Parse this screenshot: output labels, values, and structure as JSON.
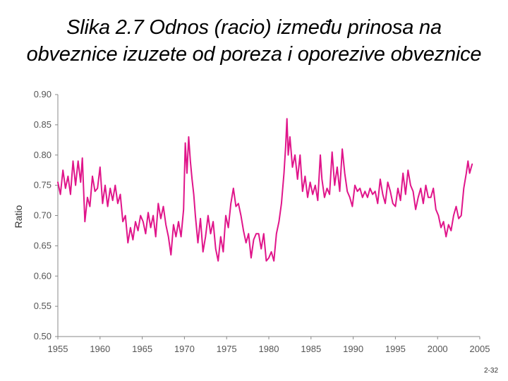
{
  "title": {
    "line1": "Slika 2.7 Odnos (racio) između prinosa na",
    "line2": "obveznice izuzete od poreza i oporezive obveznice"
  },
  "page_number": "2-32",
  "chart_data": {
    "type": "line",
    "ylabel": "Ratio",
    "xlabel": "",
    "xlim": [
      1955,
      2005
    ],
    "ylim": [
      0.5,
      0.9
    ],
    "x_ticks": [
      "1955",
      "1960",
      "1965",
      "1970",
      "1975",
      "1980",
      "1985",
      "1990",
      "1995",
      "2000",
      "2005"
    ],
    "y_ticks": [
      "0.90",
      "0.85",
      "0.80",
      "0.75",
      "0.70",
      "0.65",
      "0.60",
      "0.55",
      "0.50"
    ],
    "grid": false,
    "legend": "none",
    "color": "#e0158a",
    "series": [
      {
        "values": [
          [
            1955.0,
            0.755
          ],
          [
            1955.3,
            0.735
          ],
          [
            1955.6,
            0.775
          ],
          [
            1955.9,
            0.745
          ],
          [
            1956.2,
            0.765
          ],
          [
            1956.5,
            0.735
          ],
          [
            1956.8,
            0.79
          ],
          [
            1957.1,
            0.75
          ],
          [
            1957.4,
            0.79
          ],
          [
            1957.7,
            0.755
          ],
          [
            1957.9,
            0.795
          ],
          [
            1958.2,
            0.69
          ],
          [
            1958.5,
            0.73
          ],
          [
            1958.8,
            0.715
          ],
          [
            1959.1,
            0.765
          ],
          [
            1959.4,
            0.74
          ],
          [
            1959.7,
            0.745
          ],
          [
            1960.0,
            0.78
          ],
          [
            1960.3,
            0.72
          ],
          [
            1960.6,
            0.75
          ],
          [
            1960.9,
            0.715
          ],
          [
            1961.2,
            0.745
          ],
          [
            1961.5,
            0.725
          ],
          [
            1961.8,
            0.75
          ],
          [
            1962.1,
            0.72
          ],
          [
            1962.4,
            0.735
          ],
          [
            1962.7,
            0.69
          ],
          [
            1963.0,
            0.7
          ],
          [
            1963.3,
            0.655
          ],
          [
            1963.6,
            0.68
          ],
          [
            1963.9,
            0.66
          ],
          [
            1964.2,
            0.69
          ],
          [
            1964.5,
            0.675
          ],
          [
            1964.8,
            0.7
          ],
          [
            1965.1,
            0.69
          ],
          [
            1965.4,
            0.67
          ],
          [
            1965.7,
            0.705
          ],
          [
            1966.0,
            0.68
          ],
          [
            1966.3,
            0.7
          ],
          [
            1966.6,
            0.665
          ],
          [
            1966.9,
            0.72
          ],
          [
            1967.2,
            0.695
          ],
          [
            1967.5,
            0.715
          ],
          [
            1967.8,
            0.685
          ],
          [
            1968.1,
            0.665
          ],
          [
            1968.4,
            0.635
          ],
          [
            1968.7,
            0.685
          ],
          [
            1969.0,
            0.665
          ],
          [
            1969.3,
            0.69
          ],
          [
            1969.6,
            0.665
          ],
          [
            1969.9,
            0.71
          ],
          [
            1970.1,
            0.82
          ],
          [
            1970.3,
            0.77
          ],
          [
            1970.5,
            0.83
          ],
          [
            1970.7,
            0.79
          ],
          [
            1970.9,
            0.76
          ],
          [
            1971.1,
            0.735
          ],
          [
            1971.3,
            0.7
          ],
          [
            1971.6,
            0.655
          ],
          [
            1971.9,
            0.695
          ],
          [
            1972.2,
            0.64
          ],
          [
            1972.5,
            0.665
          ],
          [
            1972.8,
            0.7
          ],
          [
            1973.1,
            0.67
          ],
          [
            1973.4,
            0.69
          ],
          [
            1973.7,
            0.645
          ],
          [
            1974.0,
            0.625
          ],
          [
            1974.3,
            0.665
          ],
          [
            1974.6,
            0.64
          ],
          [
            1974.9,
            0.7
          ],
          [
            1975.2,
            0.68
          ],
          [
            1975.5,
            0.72
          ],
          [
            1975.8,
            0.745
          ],
          [
            1976.1,
            0.715
          ],
          [
            1976.4,
            0.72
          ],
          [
            1976.7,
            0.7
          ],
          [
            1977.0,
            0.675
          ],
          [
            1977.3,
            0.655
          ],
          [
            1977.6,
            0.67
          ],
          [
            1977.9,
            0.63
          ],
          [
            1978.2,
            0.66
          ],
          [
            1978.5,
            0.67
          ],
          [
            1978.8,
            0.67
          ],
          [
            1979.1,
            0.645
          ],
          [
            1979.4,
            0.67
          ],
          [
            1979.7,
            0.625
          ],
          [
            1980.0,
            0.63
          ],
          [
            1980.3,
            0.64
          ],
          [
            1980.6,
            0.625
          ],
          [
            1980.9,
            0.67
          ],
          [
            1981.2,
            0.69
          ],
          [
            1981.5,
            0.72
          ],
          [
            1981.8,
            0.77
          ],
          [
            1982.0,
            0.815
          ],
          [
            1982.15,
            0.86
          ],
          [
            1982.3,
            0.8
          ],
          [
            1982.5,
            0.83
          ],
          [
            1982.8,
            0.78
          ],
          [
            1983.1,
            0.8
          ],
          [
            1983.4,
            0.76
          ],
          [
            1983.7,
            0.8
          ],
          [
            1984.0,
            0.74
          ],
          [
            1984.3,
            0.765
          ],
          [
            1984.6,
            0.73
          ],
          [
            1984.9,
            0.755
          ],
          [
            1985.2,
            0.735
          ],
          [
            1985.5,
            0.75
          ],
          [
            1985.8,
            0.725
          ],
          [
            1986.1,
            0.8
          ],
          [
            1986.3,
            0.76
          ],
          [
            1986.6,
            0.73
          ],
          [
            1986.9,
            0.745
          ],
          [
            1987.2,
            0.735
          ],
          [
            1987.5,
            0.805
          ],
          [
            1987.8,
            0.75
          ],
          [
            1988.1,
            0.78
          ],
          [
            1988.4,
            0.74
          ],
          [
            1988.7,
            0.81
          ],
          [
            1989.0,
            0.77
          ],
          [
            1989.3,
            0.74
          ],
          [
            1989.6,
            0.73
          ],
          [
            1989.9,
            0.715
          ],
          [
            1990.2,
            0.75
          ],
          [
            1990.5,
            0.74
          ],
          [
            1990.8,
            0.745
          ],
          [
            1991.1,
            0.73
          ],
          [
            1991.4,
            0.74
          ],
          [
            1991.7,
            0.73
          ],
          [
            1992.0,
            0.745
          ],
          [
            1992.3,
            0.735
          ],
          [
            1992.6,
            0.74
          ],
          [
            1992.9,
            0.72
          ],
          [
            1993.2,
            0.76
          ],
          [
            1993.5,
            0.735
          ],
          [
            1993.8,
            0.72
          ],
          [
            1994.1,
            0.755
          ],
          [
            1994.4,
            0.74
          ],
          [
            1994.7,
            0.72
          ],
          [
            1995.0,
            0.715
          ],
          [
            1995.3,
            0.745
          ],
          [
            1995.6,
            0.725
          ],
          [
            1995.9,
            0.77
          ],
          [
            1996.2,
            0.735
          ],
          [
            1996.5,
            0.775
          ],
          [
            1996.8,
            0.75
          ],
          [
            1997.1,
            0.74
          ],
          [
            1997.4,
            0.71
          ],
          [
            1997.7,
            0.73
          ],
          [
            1998.0,
            0.745
          ],
          [
            1998.3,
            0.72
          ],
          [
            1998.6,
            0.75
          ],
          [
            1998.9,
            0.73
          ],
          [
            1999.2,
            0.73
          ],
          [
            1999.5,
            0.745
          ],
          [
            1999.8,
            0.71
          ],
          [
            2000.1,
            0.7
          ],
          [
            2000.4,
            0.68
          ],
          [
            2000.7,
            0.69
          ],
          [
            2001.0,
            0.665
          ],
          [
            2001.3,
            0.685
          ],
          [
            2001.6,
            0.675
          ],
          [
            2001.9,
            0.7
          ],
          [
            2002.2,
            0.715
          ],
          [
            2002.5,
            0.695
          ],
          [
            2002.8,
            0.7
          ],
          [
            2003.1,
            0.745
          ],
          [
            2003.4,
            0.77
          ],
          [
            2003.6,
            0.79
          ],
          [
            2003.8,
            0.77
          ],
          [
            2004.1,
            0.785
          ]
        ]
      }
    ]
  }
}
